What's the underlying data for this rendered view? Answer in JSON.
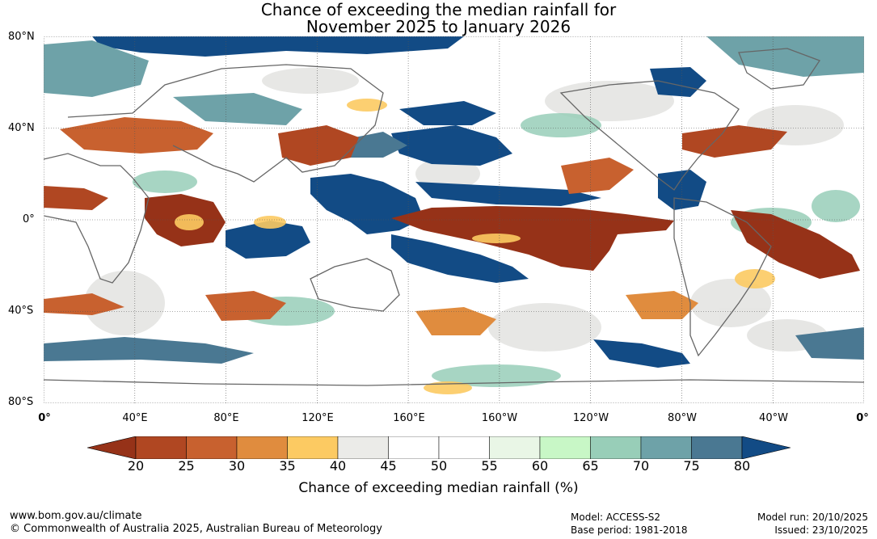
{
  "title": {
    "line1": "Chance of exceeding the median rainfall for",
    "line2": "November 2025 to January 2026"
  },
  "lat_labels": [
    "80°N",
    "40°N",
    "0°",
    "40°S",
    "80°S"
  ],
  "lon_labels": [
    "0°",
    "40°E",
    "80°E",
    "120°E",
    "160°E",
    "160°W",
    "120°W",
    "80°W",
    "40°W",
    "0°"
  ],
  "colorbar": {
    "ticks": [
      "20",
      "25",
      "30",
      "35",
      "40",
      "45",
      "50",
      "55",
      "60",
      "65",
      "70",
      "75",
      "80"
    ],
    "colors": [
      "#963218",
      "#b04722",
      "#c8612f",
      "#e08c3e",
      "#fcca62",
      "#ebebe8",
      "#ffffff",
      "#ffffff",
      "#e9f6e6",
      "#c8f7c6",
      "#98ceb8",
      "#6ea2a8",
      "#4a7892",
      "#124b85"
    ],
    "label": "Chance of exceeding median rainfall (%)"
  },
  "footer": {
    "website": "www.bom.gov.au/climate",
    "copyright": "© Commonwealth of Australia 2025, Australian Bureau of Meteorology",
    "model": "Model: ACCESS-S2",
    "base_period": "Base period: 1981-2018",
    "model_run": "Model run: 20/10/2025",
    "issued": "Issued: 23/10/2025"
  }
}
